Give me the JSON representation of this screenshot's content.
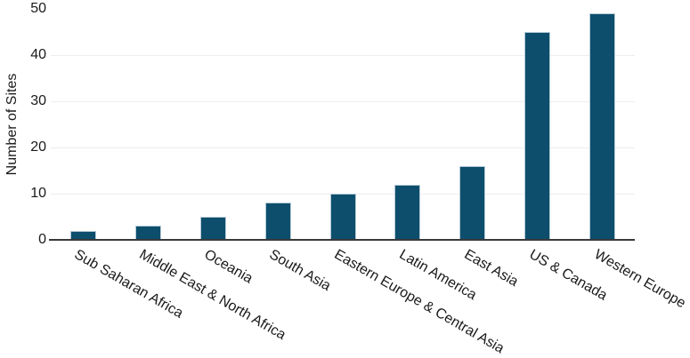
{
  "chart_data": {
    "type": "bar",
    "title": "",
    "categories": [
      "Sub Saharan Africa",
      "Middle East & North Africa",
      "Oceania",
      "South Asia",
      "Eastern Europe & Central Asia",
      "Latin America",
      "East Asia",
      "US & Canada",
      "Western Europe"
    ],
    "values": [
      2,
      3,
      5,
      8,
      10,
      12,
      16,
      45,
      49
    ],
    "xlabel": "",
    "ylabel": "Number of Sites",
    "ylim": [
      0,
      50
    ],
    "y_ticks": [
      0,
      10,
      20,
      30,
      40,
      50
    ],
    "gridline_values": [
      10,
      20,
      30,
      40
    ],
    "grid": "horizontal-light",
    "legend": "none",
    "x_tick_rotation_deg": 30,
    "colors": {
      "bar_fill": "#0d4e6d",
      "bar_edge": "#b6c9d6",
      "gridline": "#ededed",
      "axis_line": "#3a3a3a",
      "text": "#1a1a1a",
      "background": "#ffffff"
    }
  }
}
